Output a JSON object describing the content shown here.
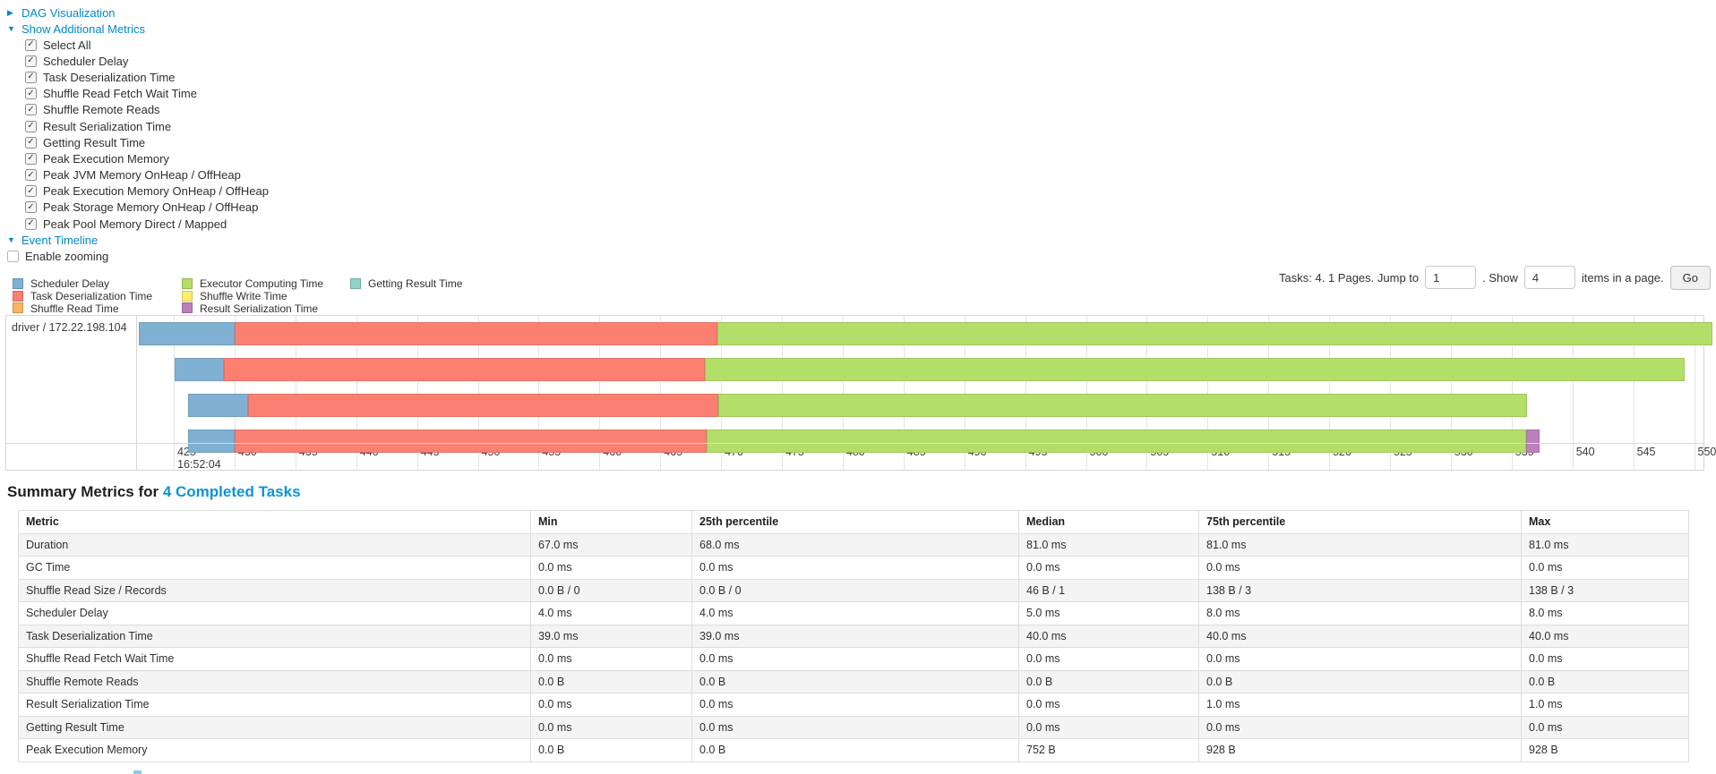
{
  "accent_color": "#0088cc",
  "links": {
    "dag_visualization": "DAG Visualization",
    "show_additional_metrics": "Show Additional Metrics",
    "event_timeline": "Event Timeline"
  },
  "controls": {
    "metric_checkboxes": [
      "Select All",
      "Scheduler Delay",
      "Task Deserialization Time",
      "Shuffle Read Fetch Wait Time",
      "Shuffle Remote Reads",
      "Result Serialization Time",
      "Getting Result Time",
      "Peak Execution Memory",
      "Peak JVM Memory OnHeap / OffHeap",
      "Peak Execution Memory OnHeap / OffHeap",
      "Peak Storage Memory OnHeap / OffHeap",
      "Peak Pool Memory Direct / Mapped"
    ],
    "enable_zooming_label": "Enable zooming",
    "enable_zooming_checked": false
  },
  "pagination": {
    "prefix": "Tasks: 4. 1 Pages. Jump to",
    "jump_value": "1",
    "middle": ". Show",
    "show_value": "4",
    "suffix": "items in a page.",
    "go_label": "Go"
  },
  "timeline": {
    "row_label": "driver / 172.22.198.104",
    "axis": {
      "start": 425,
      "end": 550,
      "step": 5,
      "time_label": "16:52:04",
      "unit": "ms"
    },
    "legend_columns": [
      [
        0,
        1,
        2
      ],
      [
        3,
        4,
        5
      ],
      [
        6
      ]
    ],
    "legend": [
      {
        "key": "scheduler_delay",
        "label": "Scheduler Delay",
        "color": "#80B1D3"
      },
      {
        "key": "task_deserialization",
        "label": "Task Deserialization Time",
        "color": "#FB8072"
      },
      {
        "key": "shuffle_read",
        "label": "Shuffle Read Time",
        "color": "#FDB462"
      },
      {
        "key": "executor_computing",
        "label": "Executor Computing Time",
        "color": "#B3DE69"
      },
      {
        "key": "shuffle_write",
        "label": "Shuffle Write Time",
        "color": "#FFED6F"
      },
      {
        "key": "result_serialization",
        "label": "Result Serialization Time",
        "color": "#BC80BD"
      },
      {
        "key": "getting_result",
        "label": "Getting Result Time",
        "color": "#8DD3C7"
      }
    ]
  },
  "chart_data": {
    "type": "timeline",
    "title": "Event Timeline",
    "x_axis": {
      "range": [
        425,
        550
      ],
      "tick_step": 5,
      "time_anchor": "16:52:04",
      "unit": "ms"
    },
    "group_label": "driver / 172.22.198.104",
    "tasks": [
      {
        "segments": [
          {
            "key": "scheduler_delay",
            "start": 422.1,
            "end": 430.0
          },
          {
            "key": "task_deserialization",
            "start": 430.0,
            "end": 469.7
          },
          {
            "key": "executor_computing",
            "start": 469.7,
            "end": 551.5
          }
        ]
      },
      {
        "segments": [
          {
            "key": "scheduler_delay",
            "start": 425.1,
            "end": 429.1
          },
          {
            "key": "task_deserialization",
            "start": 429.1,
            "end": 468.7
          },
          {
            "key": "executor_computing",
            "start": 468.7,
            "end": 549.2
          }
        ]
      },
      {
        "segments": [
          {
            "key": "scheduler_delay",
            "start": 426.2,
            "end": 431.1
          },
          {
            "key": "task_deserialization",
            "start": 431.1,
            "end": 469.8
          },
          {
            "key": "executor_computing",
            "start": 469.8,
            "end": 536.3
          }
        ]
      },
      {
        "segments": [
          {
            "key": "scheduler_delay",
            "start": 426.2,
            "end": 430.0
          },
          {
            "key": "task_deserialization",
            "start": 430.0,
            "end": 468.8
          },
          {
            "key": "executor_computing",
            "start": 468.8,
            "end": 536.2
          },
          {
            "key": "result_serialization",
            "start": 536.2,
            "end": 537.3
          }
        ]
      }
    ]
  },
  "summary": {
    "heading_prefix": "Summary Metrics for ",
    "heading_link": "4 Completed Tasks",
    "table": {
      "columns": [
        "Metric",
        "Min",
        "25th percentile",
        "Median",
        "75th percentile",
        "Max"
      ],
      "rows": [
        {
          "metric": "Duration",
          "values": [
            "67.0 ms",
            "68.0 ms",
            "81.0 ms",
            "81.0 ms",
            "81.0 ms"
          ]
        },
        {
          "metric": "GC Time",
          "values": [
            "0.0 ms",
            "0.0 ms",
            "0.0 ms",
            "0.0 ms",
            "0.0 ms"
          ]
        },
        {
          "metric": "Shuffle Read Size / Records",
          "values": [
            "0.0 B / 0",
            "0.0 B / 0",
            "46 B / 1",
            "138 B / 3",
            "138 B / 3"
          ]
        },
        {
          "metric": "Scheduler Delay",
          "values": [
            "4.0 ms",
            "4.0 ms",
            "5.0 ms",
            "8.0 ms",
            "8.0 ms"
          ]
        },
        {
          "metric": "Task Deserialization Time",
          "values": [
            "39.0 ms",
            "39.0 ms",
            "40.0 ms",
            "40.0 ms",
            "40.0 ms"
          ]
        },
        {
          "metric": "Shuffle Read Fetch Wait Time",
          "values": [
            "0.0 ms",
            "0.0 ms",
            "0.0 ms",
            "0.0 ms",
            "0.0 ms"
          ]
        },
        {
          "metric": "Shuffle Remote Reads",
          "values": [
            "0.0 B",
            "0.0 B",
            "0.0 B",
            "0.0 B",
            "0.0 B"
          ]
        },
        {
          "metric": "Result Serialization Time",
          "values": [
            "0.0 ms",
            "0.0 ms",
            "0.0 ms",
            "1.0 ms",
            "1.0 ms"
          ]
        },
        {
          "metric": "Getting Result Time",
          "values": [
            "0.0 ms",
            "0.0 ms",
            "0.0 ms",
            "0.0 ms",
            "0.0 ms"
          ]
        },
        {
          "metric": "Peak Execution Memory",
          "values": [
            "0.0 B",
            "0.0 B",
            "752 B",
            "928 B",
            "928 B"
          ]
        }
      ]
    }
  }
}
